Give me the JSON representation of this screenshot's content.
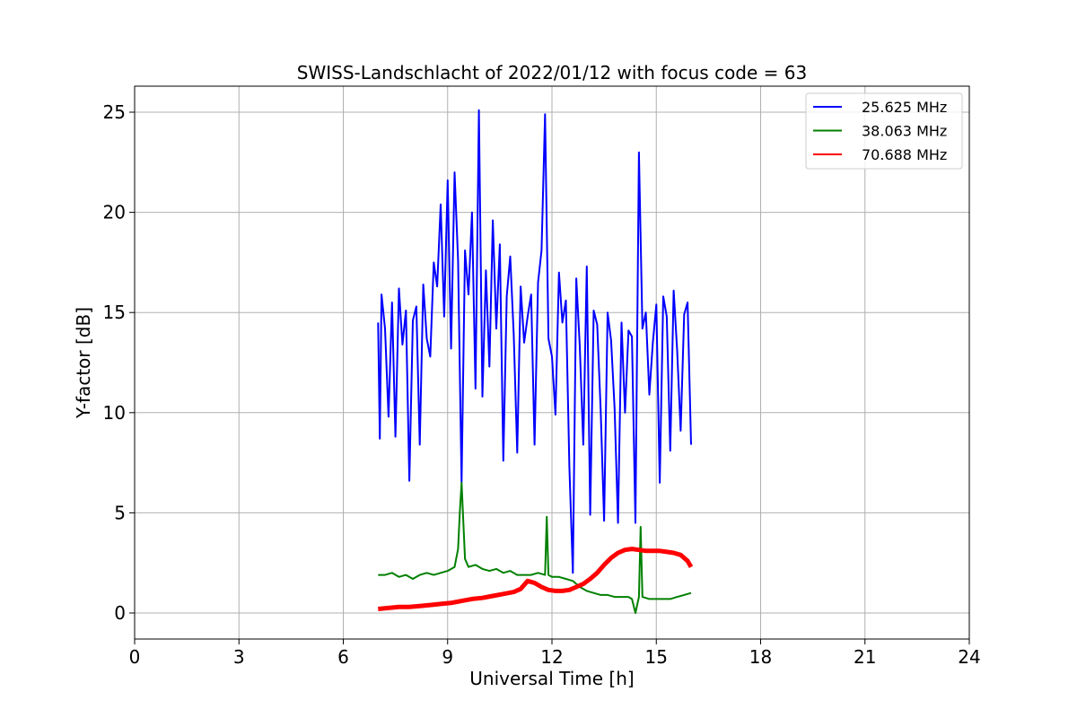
{
  "chart_data": {
    "type": "line",
    "title": "SWISS-Landschlacht of 2022/01/12 with focus code = 63",
    "xlabel": "Universal Time [h]",
    "ylabel": "Y-factor [dB]",
    "xlim": [
      0,
      24
    ],
    "ylim": [
      -1.3,
      26.3
    ],
    "xticks": [
      0,
      3,
      6,
      9,
      12,
      15,
      18,
      21,
      24
    ],
    "yticks": [
      0,
      5,
      10,
      15,
      20,
      25
    ],
    "xtick_labels": [
      "0",
      "3",
      "6",
      "9",
      "12",
      "15",
      "18",
      "21",
      "24"
    ],
    "ytick_labels": [
      "0",
      "5",
      "10",
      "15",
      "20",
      "25"
    ],
    "grid": true,
    "legend_position": "top-right",
    "series": [
      {
        "name": "25.625 MHz",
        "color": "#0000ff",
        "x": [
          7.0,
          7.05,
          7.1,
          7.2,
          7.3,
          7.4,
          7.5,
          7.6,
          7.7,
          7.8,
          7.9,
          8.0,
          8.1,
          8.2,
          8.3,
          8.4,
          8.5,
          8.6,
          8.7,
          8.8,
          8.9,
          9.0,
          9.1,
          9.2,
          9.3,
          9.4,
          9.5,
          9.6,
          9.7,
          9.8,
          9.9,
          10.0,
          10.1,
          10.2,
          10.3,
          10.4,
          10.5,
          10.6,
          10.7,
          10.8,
          10.9,
          11.0,
          11.1,
          11.2,
          11.3,
          11.4,
          11.5,
          11.6,
          11.7,
          11.8,
          11.9,
          12.0,
          12.1,
          12.2,
          12.3,
          12.4,
          12.5,
          12.6,
          12.7,
          12.8,
          12.9,
          13.0,
          13.1,
          13.2,
          13.3,
          13.4,
          13.5,
          13.6,
          13.7,
          13.8,
          13.9,
          14.0,
          14.1,
          14.2,
          14.3,
          14.4,
          14.5,
          14.6,
          14.7,
          14.8,
          14.9,
          15.0,
          15.1,
          15.2,
          15.3,
          15.4,
          15.5,
          15.6,
          15.7,
          15.8,
          15.9,
          16.0
        ],
        "y": [
          14.5,
          8.7,
          15.9,
          14.2,
          9.8,
          15.5,
          8.8,
          16.2,
          13.4,
          15.1,
          6.6,
          14.6,
          15.3,
          8.4,
          16.4,
          13.7,
          12.8,
          17.5,
          16.3,
          20.4,
          14.8,
          21.6,
          13.2,
          22.0,
          17.6,
          6.5,
          18.1,
          15.9,
          20.0,
          11.2,
          25.1,
          10.8,
          17.1,
          12.3,
          19.6,
          14.2,
          18.4,
          7.6,
          15.8,
          17.8,
          13.9,
          8.0,
          16.3,
          13.5,
          14.8,
          15.9,
          8.4,
          16.5,
          18.1,
          24.9,
          13.7,
          12.8,
          9.9,
          17.0,
          14.5,
          15.6,
          7.3,
          2.0,
          16.7,
          13.3,
          8.4,
          17.3,
          4.9,
          15.1,
          14.4,
          10.1,
          4.6,
          15.0,
          13.6,
          10.2,
          4.5,
          14.5,
          10.0,
          14.1,
          13.8,
          4.5,
          23.0,
          14.2,
          15.0,
          10.9,
          13.5,
          15.4,
          6.5,
          15.8,
          14.8,
          8.1,
          16.1,
          13.1,
          9.1,
          14.9,
          15.5,
          8.4
        ]
      },
      {
        "name": "38.063 MHz",
        "color": "#008000",
        "x": [
          7.0,
          7.2,
          7.4,
          7.6,
          7.8,
          8.0,
          8.2,
          8.4,
          8.6,
          8.8,
          9.0,
          9.2,
          9.3,
          9.35,
          9.4,
          9.5,
          9.6,
          9.8,
          10.0,
          10.2,
          10.4,
          10.6,
          10.8,
          11.0,
          11.2,
          11.4,
          11.6,
          11.8,
          11.85,
          11.9,
          12.0,
          12.2,
          12.4,
          12.6,
          12.8,
          13.0,
          13.2,
          13.4,
          13.6,
          13.8,
          14.0,
          14.2,
          14.3,
          14.4,
          14.5,
          14.55,
          14.6,
          14.8,
          15.0,
          15.2,
          15.4,
          15.6,
          15.8,
          16.0
        ],
        "y": [
          1.9,
          1.9,
          2.0,
          1.8,
          1.9,
          1.7,
          1.9,
          2.0,
          1.9,
          2.0,
          2.1,
          2.3,
          3.2,
          5.0,
          6.5,
          2.7,
          2.3,
          2.4,
          2.2,
          2.1,
          2.2,
          2.0,
          2.1,
          1.9,
          1.9,
          1.9,
          2.0,
          1.9,
          4.8,
          1.9,
          1.8,
          1.8,
          1.7,
          1.6,
          1.3,
          1.1,
          1.0,
          0.9,
          0.9,
          0.8,
          0.8,
          0.8,
          0.7,
          0.0,
          0.8,
          4.3,
          0.8,
          0.7,
          0.7,
          0.7,
          0.7,
          0.8,
          0.9,
          1.0
        ]
      },
      {
        "name": "70.688 MHz",
        "color": "#ff0000",
        "x": [
          7.0,
          7.3,
          7.6,
          7.9,
          8.2,
          8.5,
          8.8,
          9.1,
          9.4,
          9.7,
          10.0,
          10.3,
          10.6,
          10.9,
          11.1,
          11.3,
          11.5,
          11.7,
          11.9,
          12.1,
          12.3,
          12.5,
          12.7,
          12.9,
          13.1,
          13.3,
          13.5,
          13.7,
          13.9,
          14.1,
          14.3,
          14.5,
          14.7,
          14.9,
          15.1,
          15.3,
          15.5,
          15.7,
          15.9,
          16.0
        ],
        "y": [
          0.2,
          0.25,
          0.3,
          0.3,
          0.35,
          0.4,
          0.45,
          0.5,
          0.6,
          0.7,
          0.75,
          0.85,
          0.95,
          1.05,
          1.2,
          1.6,
          1.5,
          1.3,
          1.15,
          1.1,
          1.1,
          1.15,
          1.3,
          1.45,
          1.7,
          2.0,
          2.4,
          2.75,
          3.0,
          3.15,
          3.2,
          3.15,
          3.1,
          3.1,
          3.1,
          3.05,
          3.0,
          2.9,
          2.6,
          2.3
        ]
      }
    ]
  }
}
